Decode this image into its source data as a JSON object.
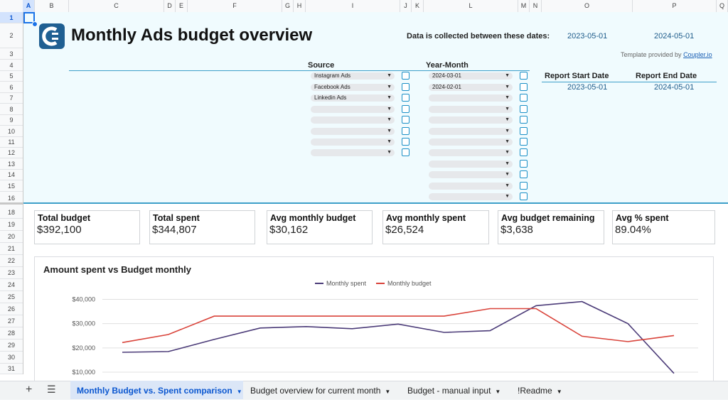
{
  "columns": [
    "A",
    "B",
    "C",
    "D",
    "E",
    "F",
    "G",
    "H",
    "I",
    "J",
    "K",
    "L",
    "M",
    "N",
    "O",
    "P",
    "Q"
  ],
  "rows": [
    "1",
    "2",
    "3",
    "4",
    "5",
    "6",
    "7",
    "8",
    "9",
    "10",
    "11",
    "12",
    "13",
    "14",
    "15",
    "16",
    "18",
    "19",
    "20",
    "21",
    "22",
    "23",
    "24",
    "25",
    "26",
    "27",
    "28",
    "29",
    "30",
    "31"
  ],
  "header": {
    "title": "Monthly Ads budget overview",
    "date_range_label": "Data is collected between these dates:",
    "date_from": "2023-05-01",
    "date_to": "2024-05-01",
    "template_credit_prefix": "Template provided by ",
    "template_credit_link": "Coupler.io"
  },
  "filters": {
    "source_label": "Source",
    "year_month_label": "Year-Month",
    "source_values": [
      "Instagram Ads",
      "Facebook Ads",
      "Linkedin Ads",
      "",
      "",
      "",
      "",
      ""
    ],
    "year_month_values": [
      "2024-03-01",
      "2024-02-01",
      "",
      "",
      "",
      "",
      "",
      "",
      "",
      "",
      "",
      ""
    ]
  },
  "report": {
    "start_label": "Report Start Date",
    "end_label": "Report End Date",
    "start_value": "2023-05-01",
    "end_value": "2024-05-01"
  },
  "kpis": [
    {
      "title": "Total budget",
      "value": "$392,100"
    },
    {
      "title": "Total spent",
      "value": "$344,807"
    },
    {
      "title": "Avg monthly budget",
      "value": "$30,162"
    },
    {
      "title": "Avg monthly spent",
      "value": "$26,524"
    },
    {
      "title": "Avg budget remaining",
      "value": "$3,638"
    },
    {
      "title": "Avg % spent",
      "value": "89.04%"
    }
  ],
  "chart_title": "Amount spent vs Budget monthly",
  "chart_data": {
    "type": "line",
    "title": "Amount spent vs Budget monthly",
    "y_tick_labels": [
      "$40,000",
      "$30,000",
      "$20,000",
      "$10,000"
    ],
    "y_ticks": [
      40000,
      30000,
      20000,
      10000
    ],
    "ylim": [
      10000,
      42000
    ],
    "grid": true,
    "legend_position": "top",
    "series": [
      {
        "name": "Monthly spent",
        "color": "#4b3b78",
        "values": [
          18200,
          18500,
          23500,
          28200,
          28800,
          27900,
          29800,
          26400,
          27100,
          37400,
          39100,
          30000,
          9500
        ]
      },
      {
        "name": "Monthly budget",
        "color": "#d9433a",
        "values": [
          22200,
          25500,
          33100,
          33100,
          33100,
          33100,
          33100,
          33100,
          36200,
          36200,
          24800,
          22600,
          25100
        ]
      }
    ]
  },
  "tabs": [
    {
      "label": "Monthly Budget vs. Spent comparison",
      "active": true
    },
    {
      "label": "Budget overview for current month",
      "active": false
    },
    {
      "label": "Budget - manual input",
      "active": false
    },
    {
      "label": "!Readme",
      "active": false
    }
  ],
  "icons": {
    "add": "plus-icon",
    "menu": "hamburger-icon",
    "logo": "coupler-logo-icon"
  },
  "colors": {
    "accent": "#3d9fc9",
    "band": "#f0fbfe",
    "date": "#1d5b8a"
  }
}
